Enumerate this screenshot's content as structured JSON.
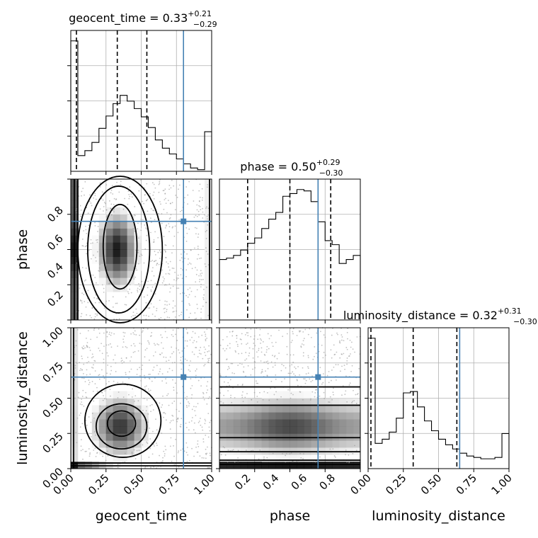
{
  "chart_data": {
    "type": "corner",
    "parameters": [
      "geocent_time",
      "phase",
      "luminosity_distance"
    ],
    "axis_labels": {
      "geocent_time": "geocent_time",
      "phase": "phase",
      "luminosity_distance": "luminosity_distance"
    },
    "truths": {
      "geocent_time": 0.8,
      "phase": 0.7,
      "luminosity_distance": 0.65
    },
    "truth_color": "#4682b4",
    "titles": {
      "geocent_time": {
        "text": "geocent_time = 0.33",
        "plus": "+0.21",
        "minus": "−0.29"
      },
      "phase": {
        "text": "phase = 0.50",
        "plus": "+0.29",
        "minus": "−0.30"
      },
      "luminosity_distance": {
        "text": "luminosity_distance = 0.32",
        "plus": "+0.31",
        "minus": "−0.30"
      }
    },
    "quantiles": {
      "geocent_time": [
        0.04,
        0.33,
        0.54
      ],
      "phase": [
        0.2,
        0.5,
        0.79
      ],
      "luminosity_distance": [
        0.02,
        0.32,
        0.63
      ]
    },
    "ranges": {
      "geocent_time": [
        0,
        1
      ],
      "phase": [
        0,
        1
      ],
      "luminosity_distance": [
        0,
        1
      ]
    },
    "ticks": {
      "geocent_time": [
        "0.00",
        "0.25",
        "0.50",
        "0.75",
        "1.00"
      ],
      "phase": [
        "0.2",
        "0.4",
        "0.6",
        "0.8"
      ],
      "luminosity_distance": [
        "0.00",
        "0.25",
        "0.50",
        "0.75",
        "1.00"
      ]
    },
    "histograms": {
      "geocent_time": [
        1.58,
        0.19,
        0.25,
        0.35,
        0.52,
        0.67,
        0.82,
        0.92,
        0.85,
        0.76,
        0.66,
        0.53,
        0.38,
        0.28,
        0.21,
        0.15,
        0.09,
        0.04,
        0.02,
        0.48
      ],
      "phase": [
        0.45,
        0.46,
        0.48,
        0.52,
        0.57,
        0.61,
        0.68,
        0.75,
        0.8,
        0.92,
        0.94,
        0.97,
        0.96,
        0.88,
        0.73,
        0.59,
        0.56,
        0.42,
        0.45,
        0.48
      ],
      "luminosity_distance": [
        0.93,
        0.18,
        0.21,
        0.26,
        0.36,
        0.54,
        0.55,
        0.44,
        0.34,
        0.27,
        0.21,
        0.17,
        0.14,
        0.11,
        0.09,
        0.08,
        0.07,
        0.07,
        0.08,
        0.25
      ]
    },
    "grid": true
  }
}
